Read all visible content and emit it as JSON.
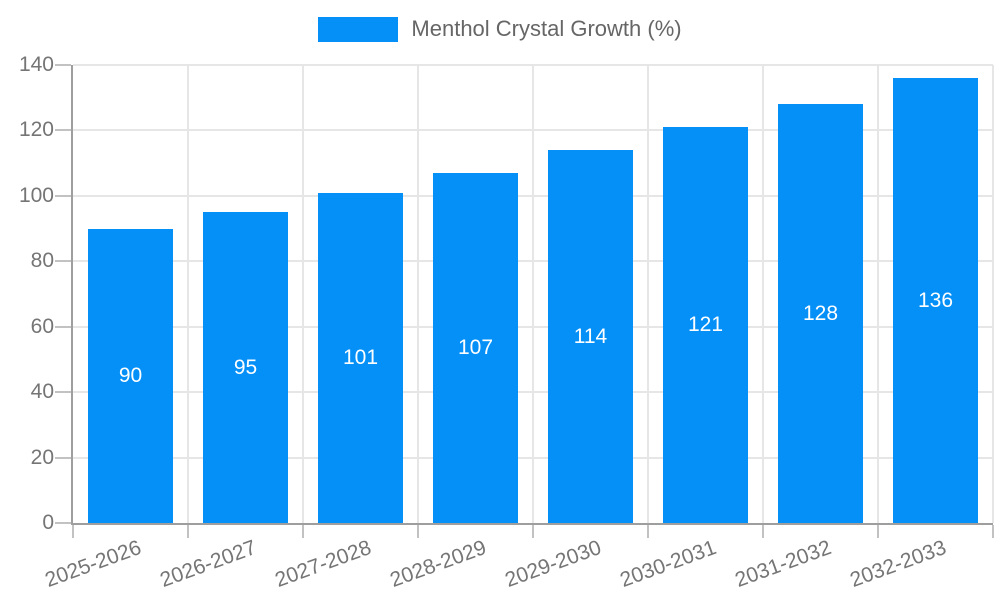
{
  "chart_data": {
    "type": "bar",
    "series": "Menthol Crystal Growth (%)",
    "categories": [
      "2025-2026",
      "2026-2027",
      "2027-2028",
      "2028-2029",
      "2029-2030",
      "2030-2031",
      "2031-2032",
      "2032-2033"
    ],
    "values": [
      90,
      95,
      101,
      107,
      114,
      121,
      128,
      136
    ],
    "yticks": [
      0,
      20,
      40,
      60,
      80,
      100,
      120,
      140
    ],
    "ylim": [
      0,
      140
    ],
    "grid": true,
    "legend_position": "top-center",
    "value_label_position": "inside-center",
    "xlabel_rotation_deg": -20
  },
  "colors": {
    "bar": "#0590f8",
    "grid": "#e6e6e6",
    "axis": "#9e9e9e",
    "tick": "#c2c2c2",
    "tick_label": "#757575",
    "legend_text": "#666666",
    "bar_label": "#ffffff",
    "background": "#ffffff"
  }
}
